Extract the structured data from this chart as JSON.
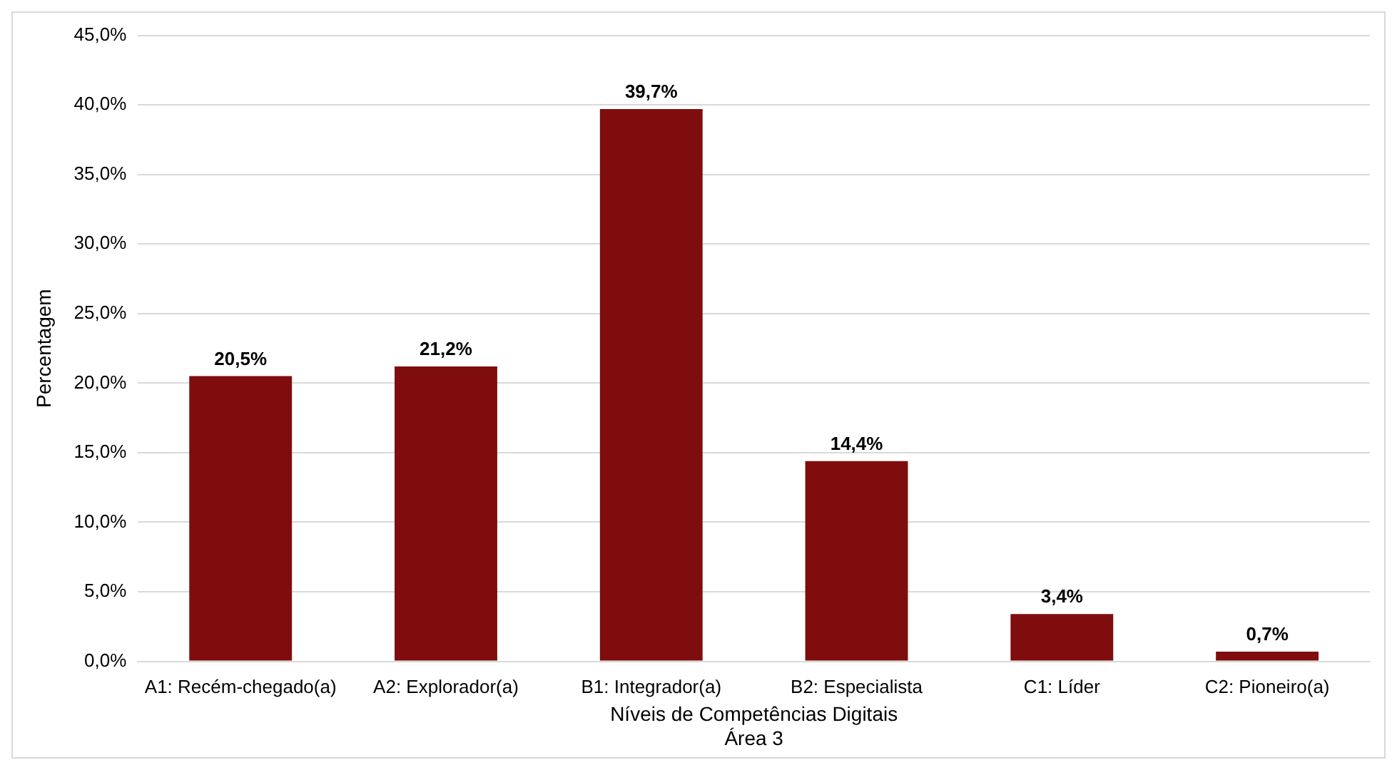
{
  "chart_data": {
    "type": "bar",
    "xlabel": "Níveis de Competências Digitais\nÁrea 3",
    "ylabel": "Percentagem",
    "categories": [
      "A1: Recém-chegado(a)",
      "A2: Explorador(a)",
      "B1: Integrador(a)",
      "B2: Especialista",
      "C1: Líder",
      "C2: Pioneiro(a)"
    ],
    "values": [
      20.5,
      21.2,
      39.7,
      14.4,
      3.4,
      0.7
    ],
    "value_labels": [
      "20,5%",
      "21,2%",
      "39,7%",
      "14,4%",
      "3,4%",
      "0,7%"
    ],
    "color": "#7f0d0d",
    "ylim": [
      0,
      45
    ],
    "yticks": [
      {
        "value": 0,
        "label": "0,0%"
      },
      {
        "value": 5,
        "label": "5,0%"
      },
      {
        "value": 10,
        "label": "10,0%"
      },
      {
        "value": 15,
        "label": "15,0%"
      },
      {
        "value": 20,
        "label": "20,0%"
      },
      {
        "value": 25,
        "label": "25,0%"
      },
      {
        "value": 30,
        "label": "30,0%"
      },
      {
        "value": 35,
        "label": "35,0%"
      },
      {
        "value": 40,
        "label": "40,0%"
      },
      {
        "value": 45,
        "label": "45,0%"
      }
    ],
    "grid": "y",
    "legend": false
  }
}
